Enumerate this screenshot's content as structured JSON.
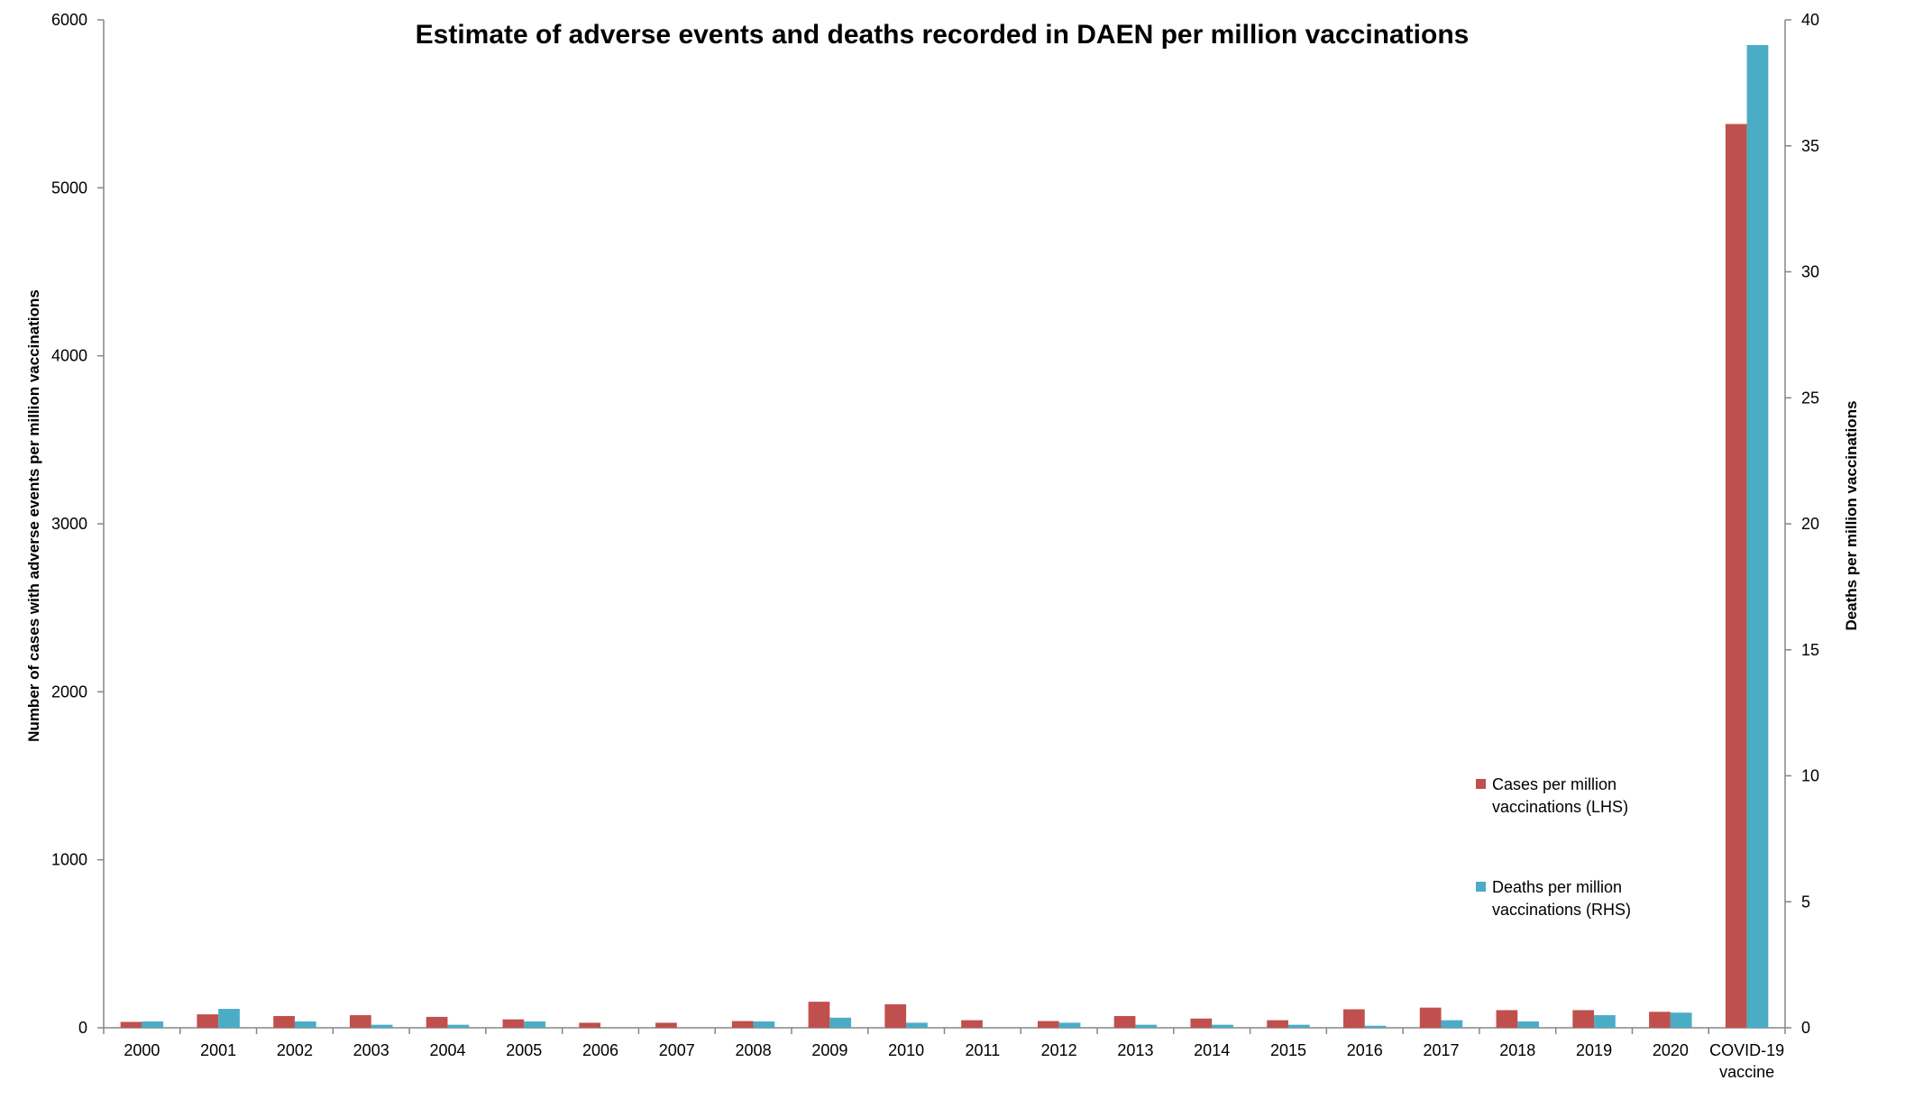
{
  "chart_data": {
    "type": "bar",
    "title": "Estimate of adverse events and deaths recorded in DAEN per million vaccinations",
    "ylabel_left": "Number of cases with adverse events per million vaccinations",
    "ylabel_right": "Deaths per million vaccinations",
    "categories": [
      "2000",
      "2001",
      "2002",
      "2003",
      "2004",
      "2005",
      "2006",
      "2007",
      "2008",
      "2009",
      "2010",
      "2011",
      "2012",
      "2013",
      "2014",
      "2015",
      "2016",
      "2017",
      "2018",
      "2019",
      "2020",
      "COVID-19 vaccine"
    ],
    "ylim_left": [
      0,
      6000
    ],
    "yticks_left": [
      0,
      1000,
      2000,
      3000,
      4000,
      5000,
      6000
    ],
    "ylim_right": [
      0,
      40
    ],
    "yticks_right": [
      0,
      5,
      10,
      15,
      20,
      25,
      30,
      35,
      40
    ],
    "grid": false,
    "legend_position": "right, lower-middle",
    "series": [
      {
        "name": "Cases per million vaccinations (LHS)",
        "legend_lines": [
          "Cases per million",
          "vaccinations (LHS)"
        ],
        "axis": "left",
        "color": "#c0504d",
        "values": [
          35,
          80,
          70,
          75,
          65,
          50,
          30,
          30,
          40,
          155,
          140,
          45,
          40,
          70,
          55,
          45,
          110,
          120,
          105,
          105,
          95,
          5380
        ]
      },
      {
        "name": "Deaths per million vaccinations (RHS)",
        "legend_lines": [
          "Deaths per million",
          "vaccinations (RHS)"
        ],
        "axis": "right",
        "color": "#4bacc6",
        "values": [
          0.25,
          0.75,
          0.25,
          0.12,
          0.12,
          0.25,
          0.0,
          0.0,
          0.25,
          0.4,
          0.2,
          0.0,
          0.2,
          0.12,
          0.12,
          0.12,
          0.08,
          0.3,
          0.25,
          0.5,
          0.6,
          39.0
        ]
      }
    ]
  }
}
